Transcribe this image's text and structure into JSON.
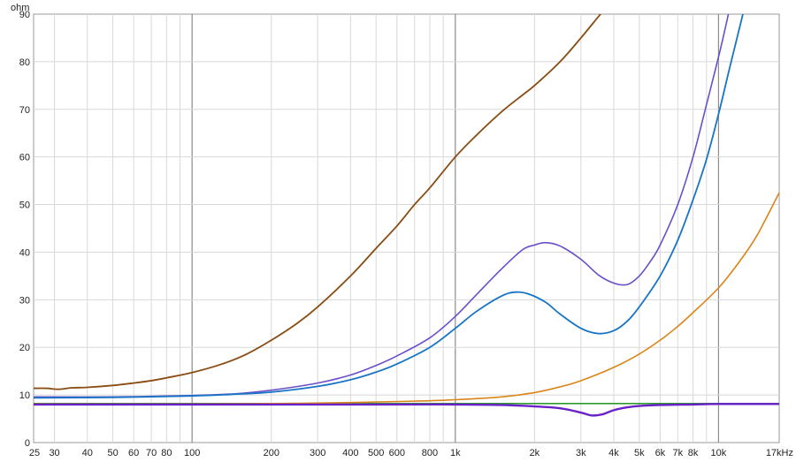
{
  "chart_data": {
    "type": "line",
    "title": "",
    "ylabel": "ohm",
    "xlabel": "",
    "x_scale": "log",
    "xlim": [
      25,
      17000
    ],
    "ylim": [
      0,
      90
    ],
    "grid": true,
    "yticks": [
      0,
      10,
      20,
      30,
      40,
      50,
      60,
      70,
      80,
      90
    ],
    "xtick_labels": [
      {
        "value": 25,
        "label": "25"
      },
      {
        "value": 30,
        "label": "30"
      },
      {
        "value": 40,
        "label": "40"
      },
      {
        "value": 50,
        "label": "50"
      },
      {
        "value": 60,
        "label": "60"
      },
      {
        "value": 70,
        "label": "70"
      },
      {
        "value": 80,
        "label": "80"
      },
      {
        "value": 100,
        "label": "100"
      },
      {
        "value": 200,
        "label": "200"
      },
      {
        "value": 300,
        "label": "300"
      },
      {
        "value": 400,
        "label": "400"
      },
      {
        "value": 500,
        "label": "500"
      },
      {
        "value": 600,
        "label": "600"
      },
      {
        "value": 800,
        "label": "800"
      },
      {
        "value": 1000,
        "label": "1k"
      },
      {
        "value": 2000,
        "label": "2k"
      },
      {
        "value": 3000,
        "label": "3k"
      },
      {
        "value": 4000,
        "label": "4k"
      },
      {
        "value": 5000,
        "label": "5k"
      },
      {
        "value": 6000,
        "label": "6k"
      },
      {
        "value": 7000,
        "label": "7k"
      },
      {
        "value": 8000,
        "label": "8k"
      },
      {
        "value": 10000,
        "label": "10k"
      },
      {
        "value": 17000,
        "label": "17kHz"
      }
    ],
    "series": [
      {
        "color": "#2e9b2e",
        "width": 1.6,
        "points": [
          [
            25,
            8.2
          ],
          [
            17000,
            8.2
          ]
        ]
      },
      {
        "color": "#d98518",
        "width": 1.6,
        "points": [
          [
            25,
            8.1
          ],
          [
            100,
            8.1
          ],
          [
            200,
            8.2
          ],
          [
            400,
            8.4
          ],
          [
            700,
            8.7
          ],
          [
            1000,
            9.0
          ],
          [
            1500,
            9.6
          ],
          [
            2000,
            10.5
          ],
          [
            2500,
            11.7
          ],
          [
            3000,
            13.0
          ],
          [
            4000,
            15.8
          ],
          [
            5000,
            18.6
          ],
          [
            6000,
            21.5
          ],
          [
            7000,
            24.4
          ],
          [
            8000,
            27.3
          ],
          [
            10000,
            32.5
          ],
          [
            12000,
            38.0
          ],
          [
            14000,
            43.5
          ],
          [
            17000,
            52.5
          ]
        ]
      },
      {
        "color": "#8a4c12",
        "width": 1.8,
        "points": [
          [
            25,
            11.4
          ],
          [
            28,
            11.4
          ],
          [
            31,
            11.2
          ],
          [
            35,
            11.5
          ],
          [
            40,
            11.6
          ],
          [
            50,
            12.0
          ],
          [
            60,
            12.5
          ],
          [
            70,
            13.0
          ],
          [
            80,
            13.6
          ],
          [
            100,
            14.7
          ],
          [
            130,
            16.5
          ],
          [
            160,
            18.5
          ],
          [
            200,
            21.5
          ],
          [
            250,
            25.0
          ],
          [
            300,
            28.5
          ],
          [
            400,
            35.0
          ],
          [
            500,
            40.8
          ],
          [
            600,
            45.5
          ],
          [
            700,
            50.0
          ],
          [
            800,
            53.5
          ],
          [
            1000,
            60.0
          ],
          [
            1200,
            64.5
          ],
          [
            1500,
            69.5
          ],
          [
            1800,
            73.0
          ],
          [
            2000,
            75.0
          ],
          [
            2500,
            80.0
          ],
          [
            3000,
            85.0
          ],
          [
            3500,
            89.5
          ],
          [
            3700,
            91.0
          ]
        ]
      },
      {
        "color": "#6a4fc9",
        "width": 1.6,
        "points": [
          [
            25,
            9.6
          ],
          [
            50,
            9.6
          ],
          [
            100,
            9.9
          ],
          [
            150,
            10.3
          ],
          [
            200,
            11.0
          ],
          [
            300,
            12.5
          ],
          [
            400,
            14.2
          ],
          [
            500,
            16.2
          ],
          [
            600,
            18.2
          ],
          [
            800,
            22.0
          ],
          [
            1000,
            26.5
          ],
          [
            1200,
            31.0
          ],
          [
            1500,
            36.5
          ],
          [
            1800,
            40.5
          ],
          [
            2000,
            41.5
          ],
          [
            2200,
            42.0
          ],
          [
            2500,
            41.3
          ],
          [
            3000,
            38.5
          ],
          [
            3500,
            35.2
          ],
          [
            4000,
            33.5
          ],
          [
            4500,
            33.2
          ],
          [
            5000,
            35.0
          ],
          [
            5500,
            38.0
          ],
          [
            6000,
            41.5
          ],
          [
            7000,
            50.0
          ],
          [
            8000,
            60.0
          ],
          [
            9000,
            71.0
          ],
          [
            10000,
            81.0
          ],
          [
            10500,
            86.0
          ],
          [
            11000,
            91.0
          ]
        ]
      },
      {
        "color": "#1874c4",
        "width": 1.8,
        "points": [
          [
            25,
            9.4
          ],
          [
            50,
            9.5
          ],
          [
            100,
            9.8
          ],
          [
            150,
            10.2
          ],
          [
            200,
            10.6
          ],
          [
            300,
            11.8
          ],
          [
            400,
            13.2
          ],
          [
            500,
            14.8
          ],
          [
            600,
            16.5
          ],
          [
            800,
            20.0
          ],
          [
            1000,
            24.0
          ],
          [
            1200,
            27.5
          ],
          [
            1500,
            30.8
          ],
          [
            1700,
            31.6
          ],
          [
            1900,
            31.2
          ],
          [
            2200,
            29.5
          ],
          [
            2500,
            27.0
          ],
          [
            3000,
            24.0
          ],
          [
            3500,
            22.9
          ],
          [
            4000,
            23.5
          ],
          [
            4500,
            25.5
          ],
          [
            5000,
            28.5
          ],
          [
            6000,
            35.0
          ],
          [
            7000,
            42.5
          ],
          [
            8000,
            51.0
          ],
          [
            9000,
            59.5
          ],
          [
            10000,
            69.0
          ],
          [
            11000,
            78.5
          ],
          [
            12000,
            87.0
          ],
          [
            12500,
            91.0
          ]
        ]
      },
      {
        "color": "#6a22c8",
        "width": 2.4,
        "points": [
          [
            25,
            8.0
          ],
          [
            500,
            8.0
          ],
          [
            1000,
            8.0
          ],
          [
            1500,
            7.9
          ],
          [
            2000,
            7.6
          ],
          [
            2500,
            7.2
          ],
          [
            3000,
            6.3
          ],
          [
            3300,
            5.7
          ],
          [
            3600,
            5.9
          ],
          [
            4000,
            6.8
          ],
          [
            4500,
            7.4
          ],
          [
            5000,
            7.7
          ],
          [
            6000,
            7.9
          ],
          [
            8000,
            8.0
          ],
          [
            10000,
            8.1
          ],
          [
            17000,
            8.1
          ]
        ]
      }
    ]
  }
}
